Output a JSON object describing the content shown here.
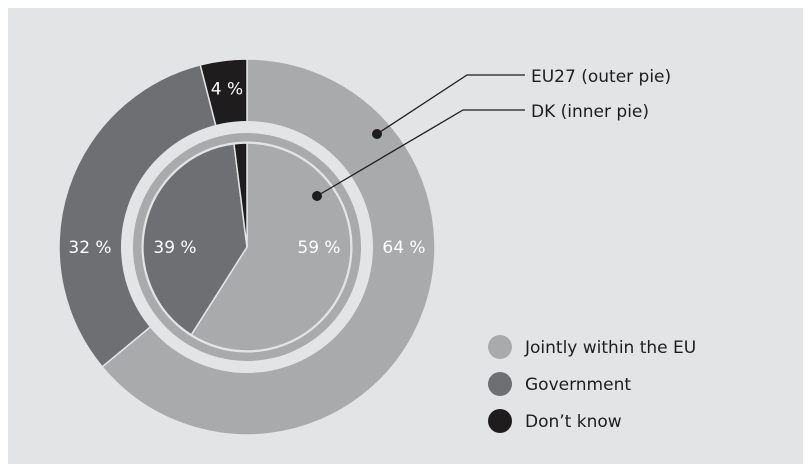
{
  "chart_data": {
    "type": "pie",
    "title": "",
    "categories": [
      "Jointly within the EU",
      "Government",
      "Don’t know"
    ],
    "series": [
      {
        "name": "EU27 (outer pie)",
        "values": [
          64,
          32,
          4
        ],
        "value_labels": [
          "64 %",
          "32 %",
          "4 %"
        ]
      },
      {
        "name": "DK (inner pie)",
        "values": [
          59,
          39,
          2
        ],
        "value_labels": [
          "59 %",
          "39 %",
          ""
        ]
      }
    ],
    "colors": [
      "#a9aaac",
      "#6e6f72",
      "#1f1c1e"
    ],
    "background": "#e3e4e5",
    "legend": {
      "position": "bottom-right",
      "items": [
        {
          "label": "Jointly within the EU",
          "color": "#a9aaac"
        },
        {
          "label": "Government",
          "color": "#6e6f72"
        },
        {
          "label": "Don’t know",
          "color": "#1f1c1e"
        }
      ]
    },
    "annotations": [
      {
        "text": "EU27 (outer pie)",
        "target": "outer"
      },
      {
        "text": "DK (inner pie)",
        "target": "inner"
      }
    ]
  }
}
